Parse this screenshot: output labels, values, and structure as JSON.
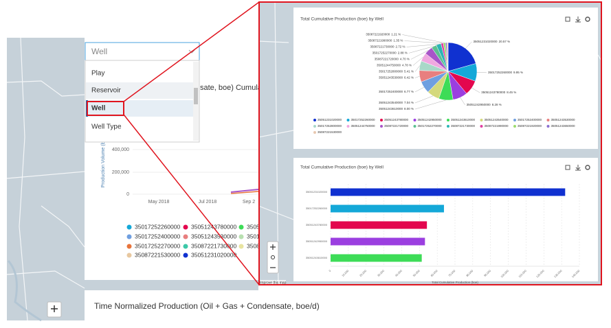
{
  "background": {
    "dropdown": {
      "value": "Well",
      "options": [
        "Play",
        "Reservoir",
        "Well",
        "Well Type"
      ]
    },
    "chart_title_fragment": "sate, boe) Cumula",
    "y_axis_label": "Production Volume (b",
    "ytick_labels": [
      "400,000",
      "200,000",
      "0"
    ],
    "x_labels": [
      "May 2018",
      "Jul 2018",
      "Sep 2"
    ],
    "legend": [
      {
        "name": "35017252260000",
        "color": "#14a8d8"
      },
      {
        "name": "35051243780000",
        "color": "#e3064e"
      },
      {
        "name": "3505",
        "color": "#3ddc57"
      },
      {
        "name": "35017252400000",
        "color": "#6f9fe0"
      },
      {
        "name": "35051243530000",
        "color": "#e87f7f"
      },
      {
        "name": "3501",
        "color": "#b8e0b0"
      },
      {
        "name": "35017252270000",
        "color": "#e8743b"
      },
      {
        "name": "35087221730000",
        "color": "#3cc8a8"
      },
      {
        "name": "3508",
        "color": "#e8e4a0"
      },
      {
        "name": "35087221530000",
        "color": "#e8c8a0"
      },
      {
        "name": "35051231020000",
        "color": "#1031d0"
      }
    ],
    "next_panel_title": "Time Normalized Production (Oil + Gas + Condensate, boe/d)",
    "map_attribution": "Improve this map"
  },
  "chart_data": [
    {
      "type": "pie",
      "title": "Total Cumulative Production (boe) by Well",
      "categories": [
        "35051231020000",
        "35017252260000",
        "35051243780000",
        "35051242950000",
        "35051243610000",
        "35051243540000",
        "35017252400000",
        "35051243530000",
        "35017252800000",
        "35051244750000",
        "35087221720000",
        "35017252270000",
        "35087221730000",
        "35087221990000",
        "35087221920000",
        "35051243650000",
        "35087221530000"
      ],
      "values": [
        20.57,
        9.95,
        8.45,
        8.28,
        8.0,
        7.04,
        6.77,
        6.42,
        5.41,
        4.78,
        4.7,
        2.88,
        2.72,
        1.35,
        1.21,
        0.8,
        0.67
      ],
      "value_labels": [
        "20.57 %",
        "9.95 %",
        "8.45 %",
        "8.28 %",
        "8.00 %",
        "7.04 %",
        "6.77 %",
        "6.42 %",
        "5.41 %",
        "4.78 %",
        "4.70 %",
        "2.88 %",
        "2.72 %",
        "1.35 %",
        "1.21 %",
        null,
        null
      ],
      "colors": [
        "#1031d0",
        "#14a8d8",
        "#e3064e",
        "#9b3fe0",
        "#3ddc57",
        "#d4d97c",
        "#6f9fe0",
        "#e87f7f",
        "#a8d8c8",
        "#f0a8e0",
        "#a855c8",
        "#5cc090",
        "#2bb5b5",
        "#e03fa0",
        "#9bdc6e",
        "#8a6fd0",
        "#e8c8b0"
      ]
    },
    {
      "type": "hbar",
      "title": "Total Cumulative Production (boe) by Well",
      "categories": [
        "35051231020000",
        "35017252260000",
        "35051243780000",
        "35051242950000",
        "35051243610000"
      ],
      "values": [
        132000,
        63800,
        54200,
        53100,
        51300
      ],
      "colors": [
        "#1031d0",
        "#14a8d8",
        "#e3064e",
        "#9b3fe0",
        "#3ddc57"
      ],
      "xlabel": "Total Cumulative Production (boe)",
      "xlim": [
        0,
        140000
      ],
      "xticks": [
        0,
        {
          "value": 10000,
          "label": "10,000"
        },
        {
          "value": 20000,
          "label": "20,000"
        },
        {
          "value": 30000,
          "label": "30,000"
        },
        {
          "value": 40000,
          "label": "40,000"
        },
        {
          "value": 50000,
          "label": "50,000"
        },
        {
          "value": 60000,
          "label": "60,000"
        },
        {
          "value": 70000,
          "label": "70,000"
        },
        {
          "value": 80000,
          "label": "80,000"
        },
        {
          "value": 90000,
          "label": "90,000"
        },
        {
          "value": 100000,
          "label": "100,000"
        },
        {
          "value": 110000,
          "label": "110,000"
        },
        {
          "value": 120000,
          "label": "120,000"
        },
        {
          "value": 130000,
          "label": "130,000"
        },
        {
          "value": 140000,
          "label": "140,000"
        }
      ],
      "grid": true
    }
  ]
}
